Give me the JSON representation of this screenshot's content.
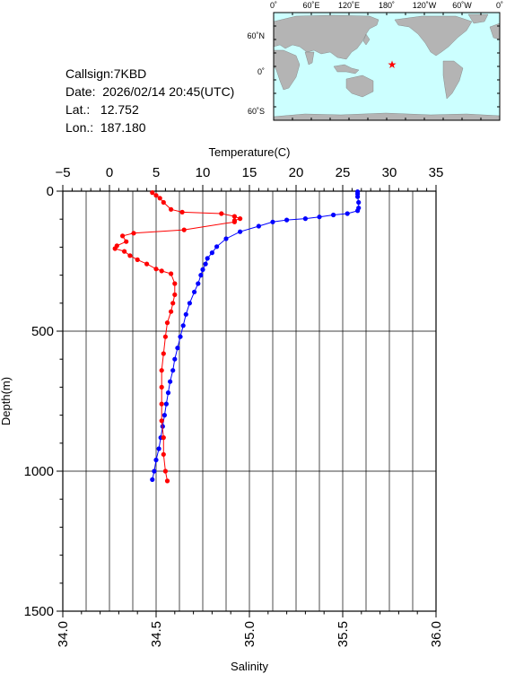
{
  "station": {
    "callsign_label": "Callsign:",
    "callsign": "7KBD",
    "date_label": "Date:",
    "date": "2026/02/14 20:45(UTC)",
    "lat_label": "Lat.:",
    "lat": "12.752",
    "lon_label": "Lon.:",
    "lon": "187.180"
  },
  "map": {
    "top_labels": [
      "0˚",
      "60˚E",
      "120˚E",
      "180˚",
      "120˚W",
      "60˚W",
      "0˚"
    ],
    "lat_labels": [
      "60˚N",
      "0˚",
      "60˚S"
    ],
    "marker_color": "#ff0000",
    "ocean_color": "#ccffff",
    "land_color": "#b4b4b4"
  },
  "chart_data": {
    "type": "line",
    "depth_label": "Depth(m)",
    "temperature_label": "Temperature(C)",
    "salinity_label": "Salinity",
    "depth_range": [
      0,
      1500
    ],
    "depth_ticks": [
      "0",
      "500",
      "1000",
      "1500"
    ],
    "temperature_range": [
      -5,
      35
    ],
    "temperature_ticks": [
      "−5",
      "0",
      "5",
      "10",
      "15",
      "20",
      "25",
      "30",
      "35"
    ],
    "salinity_range": [
      34.0,
      36.0
    ],
    "salinity_ticks": [
      "34.0",
      "34.5",
      "35.0",
      "35.5",
      "36.0"
    ],
    "grid": true,
    "series": [
      {
        "axis": "temperature",
        "color": "#0000ff",
        "points": [
          [
            26.6,
            2
          ],
          [
            26.6,
            10
          ],
          [
            26.6,
            20
          ],
          [
            26.7,
            40
          ],
          [
            26.7,
            60
          ],
          [
            26.6,
            70
          ],
          [
            25.5,
            80
          ],
          [
            24,
            85
          ],
          [
            22.5,
            92
          ],
          [
            21,
            98
          ],
          [
            19,
            103
          ],
          [
            17.5,
            110
          ],
          [
            16,
            125
          ],
          [
            14,
            145
          ],
          [
            12.5,
            170
          ],
          [
            11.5,
            198
          ],
          [
            11,
            220
          ],
          [
            10.5,
            240
          ],
          [
            10.3,
            260
          ],
          [
            10,
            280
          ],
          [
            9.8,
            300
          ],
          [
            9.5,
            330
          ],
          [
            9.1,
            360
          ],
          [
            8.6,
            400
          ],
          [
            8.2,
            440
          ],
          [
            7.9,
            480
          ],
          [
            7.6,
            520
          ],
          [
            7.3,
            560
          ],
          [
            7,
            600
          ],
          [
            6.8,
            640
          ],
          [
            6.5,
            680
          ],
          [
            6.3,
            720
          ],
          [
            6.1,
            760
          ],
          [
            5.9,
            800
          ],
          [
            5.7,
            840
          ],
          [
            5.5,
            880
          ],
          [
            5.3,
            920
          ],
          [
            5,
            960
          ],
          [
            4.8,
            1000
          ],
          [
            4.6,
            1030
          ]
        ]
      },
      {
        "axis": "salinity",
        "color": "#ff0000",
        "points": [
          [
            34.48,
            5
          ],
          [
            34.5,
            15
          ],
          [
            34.52,
            25
          ],
          [
            34.54,
            40
          ],
          [
            34.58,
            65
          ],
          [
            34.64,
            75
          ],
          [
            34.85,
            80
          ],
          [
            34.92,
            90
          ],
          [
            34.95,
            98
          ],
          [
            34.92,
            105
          ],
          [
            34.92,
            110
          ],
          [
            34.65,
            138
          ],
          [
            34.38,
            150
          ],
          [
            34.32,
            160
          ],
          [
            34.34,
            180
          ],
          [
            34.29,
            195
          ],
          [
            34.28,
            205
          ],
          [
            34.33,
            215
          ],
          [
            34.36,
            230
          ],
          [
            34.4,
            245
          ],
          [
            34.45,
            260
          ],
          [
            34.5,
            278
          ],
          [
            34.53,
            285
          ],
          [
            34.58,
            295
          ],
          [
            34.6,
            330
          ],
          [
            34.6,
            370
          ],
          [
            34.59,
            400
          ],
          [
            34.58,
            430
          ],
          [
            34.56,
            470
          ],
          [
            34.55,
            520
          ],
          [
            34.54,
            580
          ],
          [
            34.53,
            640
          ],
          [
            34.53,
            700
          ],
          [
            34.53,
            760
          ],
          [
            34.53,
            820
          ],
          [
            34.54,
            880
          ],
          [
            34.54,
            940
          ],
          [
            34.55,
            1000
          ],
          [
            34.56,
            1035
          ]
        ]
      }
    ]
  }
}
